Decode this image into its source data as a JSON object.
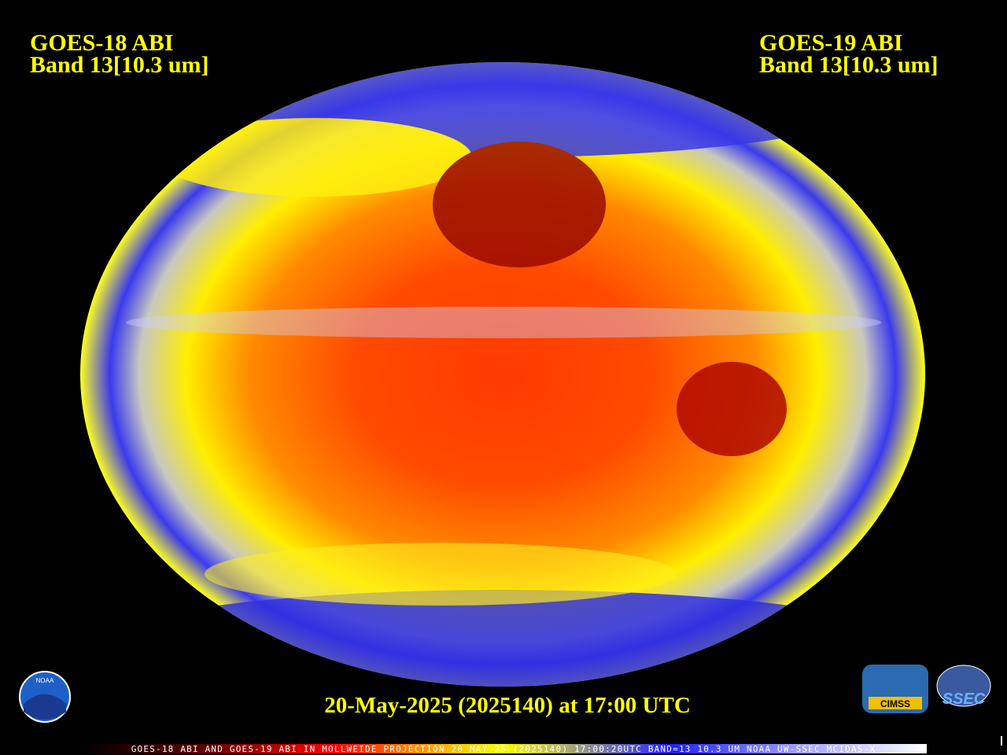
{
  "header": {
    "left": {
      "line1": "GOES-18 ABI",
      "line2": "Band 13[10.3 um]"
    },
    "right": {
      "line1": "GOES-19 ABI",
      "line2": "Band 13[10.3 um]"
    }
  },
  "caption": "20-May-2025 (2025140) at 17:00 UTC",
  "footer_strip": "GOES-18 ABI AND GOES-19 ABI IN MOLLWEIDE PROJECTION 20 MAY 25 (2025140) 17:00:20UTC BAND=13 10.3 UM NOAA UW-SSEC MCIDAS-X",
  "logos": {
    "noaa": "NOAA",
    "cimss": "CIMSS",
    "ssec": "SSEC"
  }
}
